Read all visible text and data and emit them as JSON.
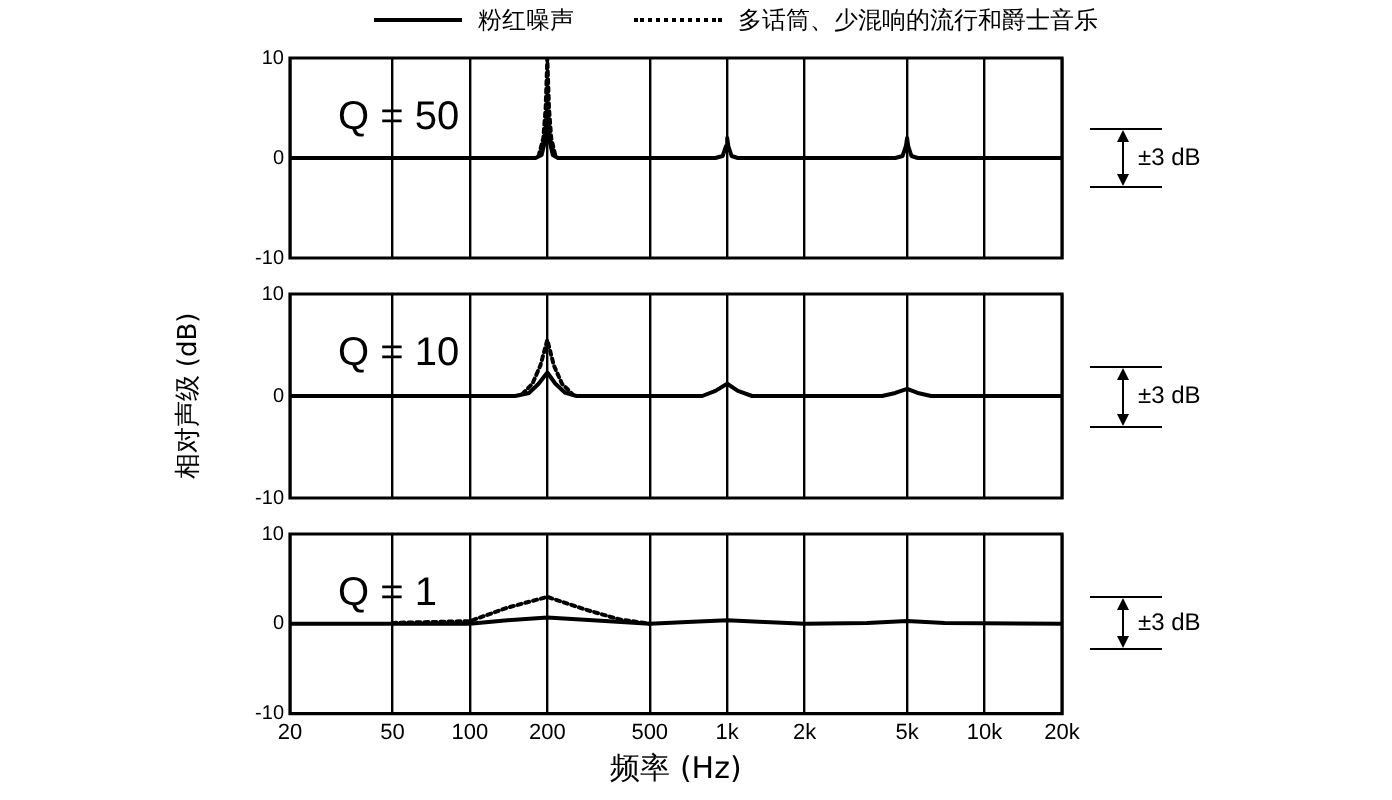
{
  "chart_data": [
    {
      "type": "line",
      "annotations": [
        "Q = 50",
        "±3 dB"
      ],
      "legend": "top",
      "log": "x",
      "grid": "x",
      "tick_labels": "y",
      "marker": "none",
      "xlim": [
        20,
        20000
      ],
      "xticks": [
        20,
        50,
        100,
        200,
        500,
        1000,
        2000,
        5000,
        10000,
        20000
      ],
      "ylim": [
        -10,
        10
      ],
      "yticks": [
        -10,
        0,
        10
      ],
      "series": [
        {
          "name": "粉红噪声",
          "color": "#000000",
          "line_style": "solid",
          "x": [
            20,
            180,
            190,
            195,
            200,
            205,
            210,
            220,
            900,
            960,
            990,
            1000,
            1010,
            1040,
            1100,
            4500,
            4800,
            4950,
            5000,
            5050,
            5200,
            5500,
            20000
          ],
          "values": [
            0,
            0,
            0.3,
            1.5,
            4,
            1.5,
            0.3,
            0,
            0,
            0.2,
            1.2,
            2,
            1.2,
            0.2,
            0,
            0,
            0.2,
            1.2,
            2,
            1.2,
            0.2,
            0,
            0
          ]
        },
        {
          "name": "多话筒、少混响的流行和爵士音乐",
          "color": "#000000",
          "line_style": "dotted",
          "x": [
            185,
            193,
            197,
            200,
            203,
            207,
            215
          ],
          "values": [
            0.2,
            2,
            5,
            10,
            5,
            2,
            0.2
          ]
        }
      ]
    },
    {
      "type": "line",
      "annotations": [
        "Q = 10",
        "±3 dB"
      ],
      "ylabel": "相对声级 (dB)",
      "legend": false,
      "log": "x",
      "grid": "x",
      "tick_labels": "y",
      "marker": "none",
      "xlim": [
        20,
        20000
      ],
      "xticks": [
        20,
        50,
        100,
        200,
        500,
        1000,
        2000,
        5000,
        10000,
        20000
      ],
      "ylim": [
        -10,
        10
      ],
      "yticks": [
        -10,
        0,
        10
      ],
      "series": [
        {
          "color": "#000000",
          "line_style": "solid",
          "x": [
            20,
            150,
            170,
            185,
            200,
            215,
            235,
            260,
            800,
            900,
            1000,
            1100,
            1250,
            4000,
            4500,
            5000,
            5500,
            6200,
            20000
          ],
          "values": [
            0,
            0,
            0.3,
            1.2,
            2.3,
            1.2,
            0.3,
            0,
            0,
            0.5,
            1.2,
            0.5,
            0,
            0,
            0.3,
            0.7,
            0.3,
            0,
            0
          ]
        },
        {
          "color": "#000000",
          "line_style": "dotted",
          "x": [
            160,
            175,
            188,
            200,
            212,
            228,
            250
          ],
          "values": [
            0.2,
            1.2,
            3,
            5.5,
            3,
            1.2,
            0.2
          ]
        }
      ]
    },
    {
      "type": "line",
      "annotations": [
        "Q = 1",
        "±3 dB"
      ],
      "xlabel": "频率 (Hz)",
      "legend": false,
      "log": "x",
      "grid": "x",
      "marker": "none",
      "xlim": [
        20,
        20000
      ],
      "xticks": [
        20,
        50,
        100,
        200,
        500,
        {
          "value": 1000,
          "label": "1k"
        },
        {
          "value": 2000,
          "label": "2k"
        },
        {
          "value": 5000,
          "label": "5k"
        },
        {
          "value": 10000,
          "label": "10k"
        },
        {
          "value": 20000,
          "label": "20k"
        }
      ],
      "ylim": [
        -10,
        10
      ],
      "yticks": [
        -10,
        0,
        10
      ],
      "series": [
        {
          "color": "#000000",
          "line_style": "solid",
          "x": [
            20,
            100,
            140,
            200,
            300,
            500,
            700,
            1000,
            1400,
            2000,
            3500,
            5000,
            7000,
            20000
          ],
          "values": [
            0,
            0,
            0.4,
            0.7,
            0.4,
            0,
            0.2,
            0.4,
            0.2,
            0,
            0.1,
            0.3,
            0.1,
            0
          ]
        },
        {
          "color": "#000000",
          "line_style": "dotted",
          "x": [
            50,
            100,
            140,
            200,
            280,
            380,
            500
          ],
          "values": [
            0.1,
            0.3,
            1.8,
            3,
            1.6,
            0.5,
            0
          ]
        }
      ]
    }
  ]
}
